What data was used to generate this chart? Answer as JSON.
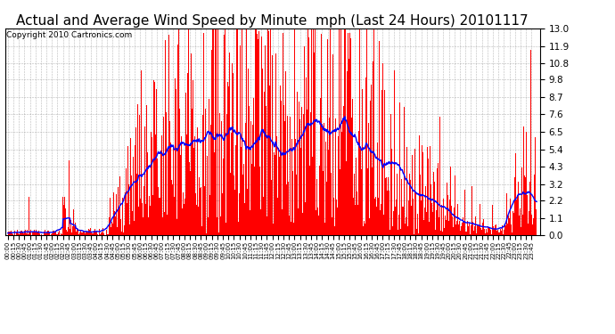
{
  "title": "Actual and Average Wind Speed by Minute  mph (Last 24 Hours) 20101117",
  "copyright": "Copyright 2010 Cartronics.com",
  "yticks": [
    0.0,
    1.1,
    2.2,
    3.2,
    4.3,
    5.4,
    6.5,
    7.6,
    8.7,
    9.8,
    10.8,
    11.9,
    13.0
  ],
  "ylim": [
    0.0,
    13.0
  ],
  "bar_color": "#ff0000",
  "line_color": "#0000ff",
  "bg_color": "#ffffff",
  "grid_color": "#888888",
  "title_fontsize": 11,
  "copyright_fontsize": 6.5,
  "n_minutes": 1440,
  "xtick_interval": 15
}
